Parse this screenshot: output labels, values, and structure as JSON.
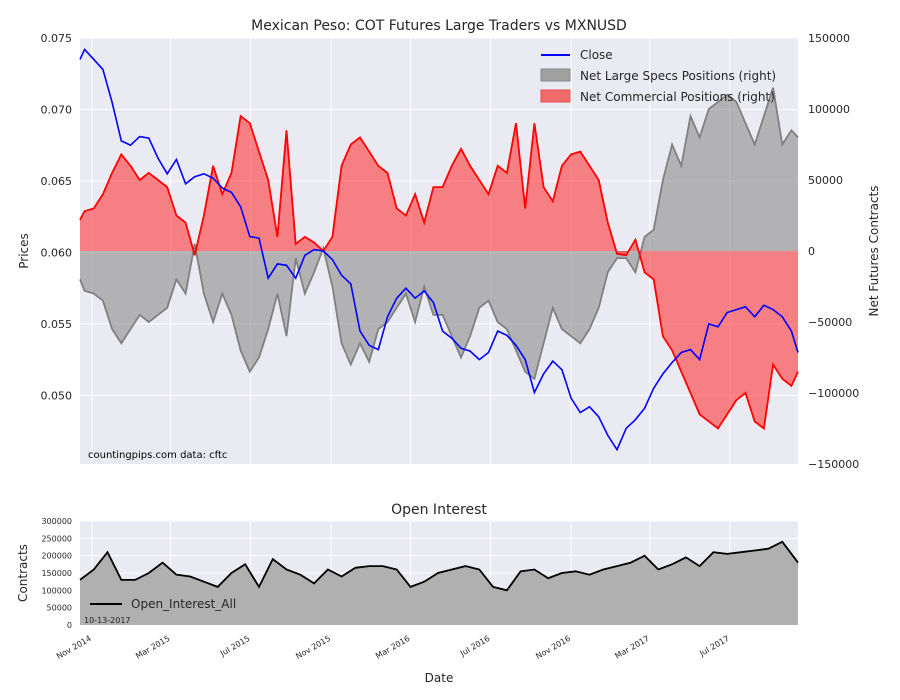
{
  "chart_data": [
    {
      "type": "line",
      "title": "Mexican Peso: COT Futures Large Traders vs MXNUSD",
      "ylabel": "Prices",
      "y2label": "Net Futures Contracts",
      "ylim": [
        0.0452,
        0.075
      ],
      "y2lim": [
        -150000,
        150000
      ],
      "y_ticks": [
        "0.050",
        "0.055",
        "0.060",
        "0.065",
        "0.070",
        "0.075"
      ],
      "y2_ticks": [
        "−150000",
        "−100000",
        "−50000",
        "0",
        "50000",
        "100000",
        "150000"
      ],
      "grid": true,
      "legend_position": "top-right",
      "source_text": "countingpips.com    data: cftc",
      "series": [
        {
          "name": "Close",
          "color": "#0000ff",
          "axis": "left",
          "x": [
            "2014-10-14",
            "2014-10-21",
            "2014-11-04",
            "2014-11-18",
            "2014-12-02",
            "2014-12-16",
            "2014-12-30",
            "2015-01-13",
            "2015-01-27",
            "2015-02-10",
            "2015-02-24",
            "2015-03-10",
            "2015-03-24",
            "2015-04-07",
            "2015-04-21",
            "2015-05-05",
            "2015-05-19",
            "2015-06-02",
            "2015-06-16",
            "2015-06-30",
            "2015-07-14",
            "2015-07-28",
            "2015-08-11",
            "2015-08-25",
            "2015-09-08",
            "2015-09-22",
            "2015-10-06",
            "2015-10-20",
            "2015-11-03",
            "2015-11-17",
            "2015-12-01",
            "2015-12-15",
            "2015-12-29",
            "2016-01-12",
            "2016-01-26",
            "2016-02-09",
            "2016-02-23",
            "2016-03-08",
            "2016-03-22",
            "2016-04-05",
            "2016-04-19",
            "2016-05-03",
            "2016-05-17",
            "2016-05-31",
            "2016-06-14",
            "2016-06-28",
            "2016-07-12",
            "2016-07-26",
            "2016-08-09",
            "2016-08-23",
            "2016-09-06",
            "2016-09-20",
            "2016-10-04",
            "2016-10-18",
            "2016-11-01",
            "2016-11-15",
            "2016-11-29",
            "2016-12-13",
            "2016-12-27",
            "2017-01-10",
            "2017-01-24",
            "2017-02-07",
            "2017-02-21",
            "2017-03-07",
            "2017-03-21",
            "2017-04-04",
            "2017-04-18",
            "2017-05-02",
            "2017-05-16",
            "2017-05-30",
            "2017-06-13",
            "2017-06-27",
            "2017-07-11",
            "2017-07-25",
            "2017-08-08",
            "2017-08-22",
            "2017-09-05",
            "2017-09-19",
            "2017-10-03",
            "2017-10-13"
          ],
          "values": [
            0.0735,
            0.0742,
            0.0735,
            0.0728,
            0.0705,
            0.0678,
            0.0675,
            0.0681,
            0.068,
            0.0666,
            0.0655,
            0.0665,
            0.0648,
            0.0653,
            0.0655,
            0.0652,
            0.0645,
            0.0642,
            0.0632,
            0.0611,
            0.061,
            0.0582,
            0.0592,
            0.0591,
            0.0582,
            0.0598,
            0.0602,
            0.0601,
            0.0595,
            0.0584,
            0.0578,
            0.0545,
            0.0535,
            0.0532,
            0.0555,
            0.0568,
            0.0575,
            0.0568,
            0.0573,
            0.0565,
            0.0545,
            0.054,
            0.0533,
            0.0531,
            0.0525,
            0.053,
            0.0545,
            0.0542,
            0.0535,
            0.0525,
            0.0502,
            0.0515,
            0.0524,
            0.0518,
            0.0498,
            0.0488,
            0.0492,
            0.0485,
            0.0472,
            0.0462,
            0.0477,
            0.0483,
            0.0491,
            0.0505,
            0.0515,
            0.0523,
            0.053,
            0.0532,
            0.0525,
            0.055,
            0.0548,
            0.0558,
            0.056,
            0.0562,
            0.0555,
            0.0563,
            0.056,
            0.0555,
            0.0545,
            0.053
          ]
        },
        {
          "name": "Net Large Specs Positions (right)",
          "color": "#a0a0a0",
          "axis": "right",
          "x": [
            "2014-10-14",
            "2014-10-21",
            "2014-11-04",
            "2014-11-18",
            "2014-12-02",
            "2014-12-16",
            "2014-12-30",
            "2015-01-13",
            "2015-01-27",
            "2015-02-10",
            "2015-02-24",
            "2015-03-10",
            "2015-03-24",
            "2015-04-07",
            "2015-04-21",
            "2015-05-05",
            "2015-05-19",
            "2015-06-02",
            "2015-06-16",
            "2015-06-30",
            "2015-07-14",
            "2015-07-28",
            "2015-08-11",
            "2015-08-25",
            "2015-09-08",
            "2015-09-22",
            "2015-10-06",
            "2015-10-20",
            "2015-11-03",
            "2015-11-17",
            "2015-12-01",
            "2015-12-15",
            "2015-12-29",
            "2016-01-12",
            "2016-01-26",
            "2016-02-09",
            "2016-02-23",
            "2016-03-08",
            "2016-03-22",
            "2016-04-05",
            "2016-04-19",
            "2016-05-03",
            "2016-05-17",
            "2016-05-31",
            "2016-06-14",
            "2016-06-28",
            "2016-07-12",
            "2016-07-26",
            "2016-08-09",
            "2016-08-23",
            "2016-09-06",
            "2016-09-20",
            "2016-10-04",
            "2016-10-18",
            "2016-11-01",
            "2016-11-15",
            "2016-11-29",
            "2016-12-13",
            "2016-12-27",
            "2017-01-10",
            "2017-01-24",
            "2017-02-07",
            "2017-02-21",
            "2017-03-07",
            "2017-03-21",
            "2017-04-04",
            "2017-04-18",
            "2017-05-02",
            "2017-05-16",
            "2017-05-30",
            "2017-06-13",
            "2017-06-27",
            "2017-07-11",
            "2017-07-25",
            "2017-08-08",
            "2017-08-22",
            "2017-09-05",
            "2017-09-19",
            "2017-10-03",
            "2017-10-13"
          ],
          "values": [
            -20000,
            -28000,
            -30000,
            -35000,
            -55000,
            -65000,
            -55000,
            -45000,
            -50000,
            -45000,
            -40000,
            -20000,
            -30000,
            5000,
            -30000,
            -50000,
            -30000,
            -45000,
            -70000,
            -85000,
            -75000,
            -55000,
            -30000,
            -60000,
            -5000,
            -30000,
            -15000,
            2000,
            -25000,
            -65000,
            -80000,
            -65000,
            -78000,
            -55000,
            -50000,
            -40000,
            -30000,
            -50000,
            -25000,
            -45000,
            -45000,
            -60000,
            -75000,
            -60000,
            -40000,
            -35000,
            -50000,
            -55000,
            -70000,
            -85000,
            -90000,
            -65000,
            -40000,
            -55000,
            -60000,
            -65000,
            -55000,
            -40000,
            -15000,
            -5000,
            -5000,
            -15000,
            10000,
            15000,
            50000,
            75000,
            60000,
            95000,
            80000,
            100000,
            105000,
            110000,
            105000,
            90000,
            75000,
            95000,
            115000,
            75000,
            85000,
            80000
          ]
        },
        {
          "name": "Net Commercial Positions (right)",
          "color": "#ff0000",
          "axis": "right",
          "x": [
            "2014-10-14",
            "2014-10-21",
            "2014-11-04",
            "2014-11-18",
            "2014-12-02",
            "2014-12-16",
            "2014-12-30",
            "2015-01-13",
            "2015-01-27",
            "2015-02-10",
            "2015-02-24",
            "2015-03-10",
            "2015-03-24",
            "2015-04-07",
            "2015-04-21",
            "2015-05-05",
            "2015-05-19",
            "2015-06-02",
            "2015-06-16",
            "2015-06-30",
            "2015-07-14",
            "2015-07-28",
            "2015-08-11",
            "2015-08-25",
            "2015-09-08",
            "2015-09-22",
            "2015-10-06",
            "2015-10-20",
            "2015-11-03",
            "2015-11-17",
            "2015-12-01",
            "2015-12-15",
            "2015-12-29",
            "2016-01-12",
            "2016-01-26",
            "2016-02-09",
            "2016-02-23",
            "2016-03-08",
            "2016-03-22",
            "2016-04-05",
            "2016-04-19",
            "2016-05-03",
            "2016-05-17",
            "2016-05-31",
            "2016-06-14",
            "2016-06-28",
            "2016-07-12",
            "2016-07-26",
            "2016-08-09",
            "2016-08-23",
            "2016-09-06",
            "2016-09-20",
            "2016-10-04",
            "2016-10-18",
            "2016-11-01",
            "2016-11-15",
            "2016-11-29",
            "2016-12-13",
            "2016-12-27",
            "2017-01-10",
            "2017-01-24",
            "2017-02-07",
            "2017-02-21",
            "2017-03-07",
            "2017-03-21",
            "2017-04-04",
            "2017-04-18",
            "2017-05-02",
            "2017-05-16",
            "2017-05-30",
            "2017-06-13",
            "2017-06-27",
            "2017-07-11",
            "2017-07-25",
            "2017-08-08",
            "2017-08-22",
            "2017-09-05",
            "2017-09-19",
            "2017-10-03",
            "2017-10-13"
          ],
          "values": [
            22000,
            28000,
            30000,
            40000,
            55000,
            68000,
            60000,
            50000,
            55000,
            50000,
            45000,
            25000,
            20000,
            -3000,
            25000,
            60000,
            40000,
            55000,
            95000,
            90000,
            70000,
            50000,
            10000,
            85000,
            5000,
            10000,
            6000,
            0,
            10000,
            60000,
            75000,
            80000,
            70000,
            60000,
            55000,
            30000,
            25000,
            40000,
            20000,
            45000,
            45000,
            60000,
            72000,
            60000,
            50000,
            40000,
            60000,
            55000,
            90000,
            30000,
            90000,
            45000,
            35000,
            60000,
            68000,
            70000,
            60000,
            50000,
            20000,
            -2000,
            -3000,
            8000,
            -15000,
            -20000,
            -60000,
            -70000,
            -85000,
            -100000,
            -115000,
            -120000,
            -125000,
            -115000,
            -105000,
            -100000,
            -120000,
            -125000,
            -80000,
            -90000,
            -95000,
            -85000
          ]
        }
      ]
    },
    {
      "type": "area",
      "title": "Open Interest",
      "ylabel": "Contracts",
      "xlabel": "Date",
      "ylim": [
        0,
        300000
      ],
      "y_ticks": [
        "0",
        "50000",
        "100000",
        "150000",
        "200000",
        "250000",
        "300000"
      ],
      "x_ticks": [
        "Nov 2014",
        "Mar 2015",
        "Jul 2015",
        "Nov 2015",
        "Mar 2016",
        "Jul 2016",
        "Nov 2016",
        "Mar 2017",
        "Jul 2017"
      ],
      "x_tick_dates": [
        "2014-11-01",
        "2015-03-01",
        "2015-07-01",
        "2015-11-01",
        "2016-03-01",
        "2016-07-01",
        "2016-11-01",
        "2017-03-01",
        "2017-07-01"
      ],
      "date_range": [
        "2014-10-14",
        "2017-10-13"
      ],
      "date_annotation": "10-13-2017",
      "legend_position": "bottom-left",
      "series": [
        {
          "name": "Open_Interest_All",
          "color": "#000000",
          "fill": "#b0b0b0",
          "x": [
            "2014-10-14",
            "2014-11-04",
            "2014-11-25",
            "2014-12-16",
            "2015-01-06",
            "2015-01-27",
            "2015-02-17",
            "2015-03-10",
            "2015-03-31",
            "2015-04-21",
            "2015-05-12",
            "2015-06-02",
            "2015-06-23",
            "2015-07-14",
            "2015-08-04",
            "2015-08-25",
            "2015-09-15",
            "2015-10-06",
            "2015-10-27",
            "2015-11-17",
            "2015-12-08",
            "2015-12-29",
            "2016-01-19",
            "2016-02-09",
            "2016-03-01",
            "2016-03-22",
            "2016-04-12",
            "2016-05-03",
            "2016-05-24",
            "2016-06-14",
            "2016-07-05",
            "2016-07-26",
            "2016-08-16",
            "2016-09-06",
            "2016-09-27",
            "2016-10-18",
            "2016-11-08",
            "2016-11-29",
            "2016-12-20",
            "2017-01-10",
            "2017-01-31",
            "2017-02-21",
            "2017-03-14",
            "2017-04-04",
            "2017-04-25",
            "2017-05-16",
            "2017-06-06",
            "2017-06-27",
            "2017-07-18",
            "2017-08-08",
            "2017-08-29",
            "2017-09-19",
            "2017-10-13"
          ],
          "values": [
            130000,
            160000,
            210000,
            130000,
            130000,
            150000,
            180000,
            145000,
            140000,
            125000,
            110000,
            150000,
            175000,
            110000,
            190000,
            160000,
            145000,
            120000,
            160000,
            140000,
            165000,
            170000,
            170000,
            160000,
            110000,
            125000,
            150000,
            160000,
            170000,
            160000,
            110000,
            100000,
            155000,
            160000,
            135000,
            150000,
            155000,
            145000,
            160000,
            170000,
            180000,
            200000,
            160000,
            175000,
            195000,
            170000,
            210000,
            205000,
            210000,
            215000,
            220000,
            240000,
            180000
          ]
        }
      ]
    }
  ]
}
